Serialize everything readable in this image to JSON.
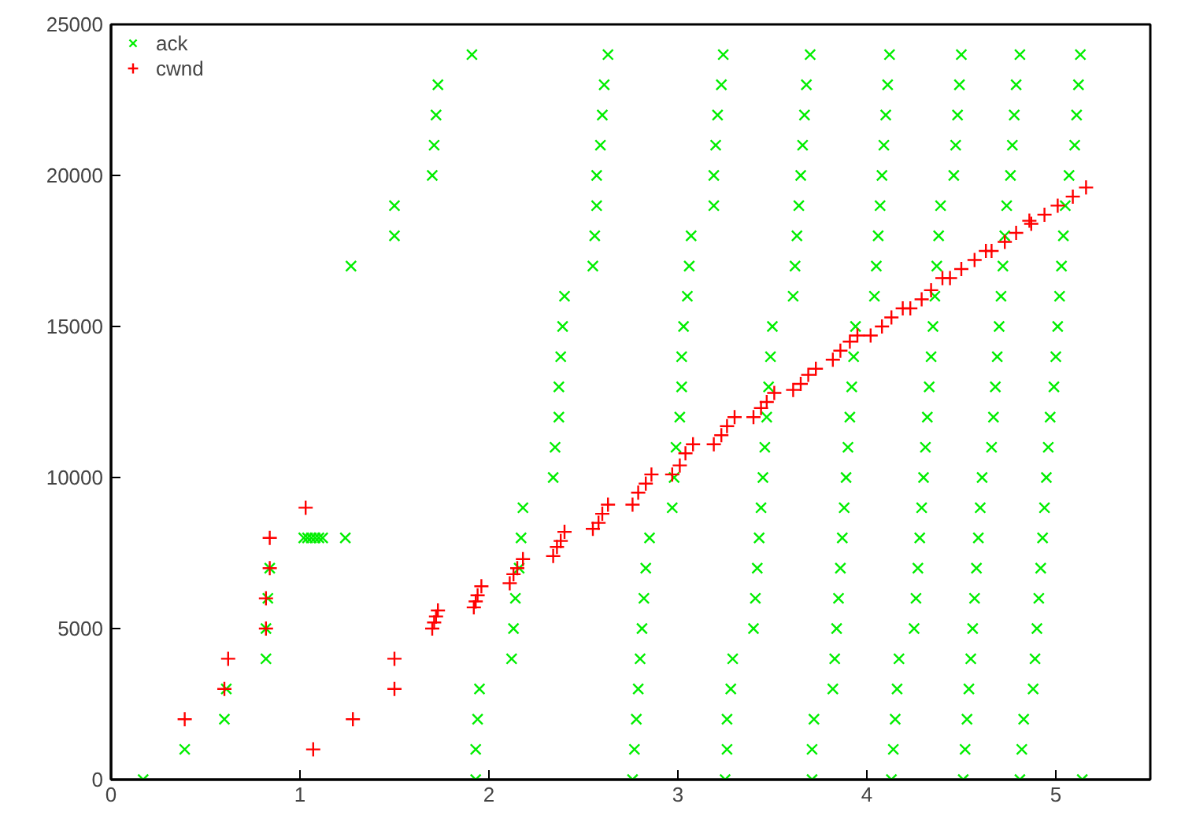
{
  "chart_data": {
    "type": "scatter",
    "xlim": [
      0,
      5.5
    ],
    "ylim": [
      0,
      25000
    ],
    "xticks": [
      0,
      1,
      2,
      3,
      4,
      5
    ],
    "yticks": [
      0,
      5000,
      10000,
      15000,
      20000,
      25000
    ],
    "grid": false,
    "legend": "top left",
    "series": [
      {
        "name": "ack",
        "color": "#00ee00",
        "marker": "x",
        "x": [
          0.17,
          0.39,
          0.6,
          0.61,
          0.82,
          0.82,
          0.83,
          0.84,
          1.02,
          1.04,
          1.06,
          1.08,
          1.1,
          1.12,
          1.24,
          1.27,
          1.5,
          1.5,
          1.7,
          1.71,
          1.72,
          1.73,
          1.91,
          1.93,
          1.93,
          1.94,
          1.95,
          2.12,
          2.13,
          2.14,
          2.16,
          2.17,
          2.18,
          2.34,
          2.35,
          2.37,
          2.37,
          2.38,
          2.39,
          2.4,
          2.55,
          2.56,
          2.57,
          2.57,
          2.59,
          2.6,
          2.61,
          2.63,
          2.76,
          2.77,
          2.78,
          2.79,
          2.8,
          2.81,
          2.82,
          2.83,
          2.85,
          2.97,
          2.98,
          2.99,
          3.01,
          3.02,
          3.02,
          3.03,
          3.05,
          3.06,
          3.07,
          3.19,
          3.19,
          3.2,
          3.21,
          3.23,
          3.24,
          3.25,
          3.26,
          3.26,
          3.28,
          3.29,
          3.4,
          3.41,
          3.42,
          3.43,
          3.44,
          3.45,
          3.46,
          3.47,
          3.48,
          3.49,
          3.5,
          3.61,
          3.62,
          3.63,
          3.64,
          3.65,
          3.66,
          3.67,
          3.68,
          3.7,
          3.71,
          3.71,
          3.72,
          3.82,
          3.83,
          3.84,
          3.85,
          3.86,
          3.87,
          3.88,
          3.89,
          3.9,
          3.91,
          3.92,
          3.93,
          3.94,
          4.04,
          4.05,
          4.06,
          4.07,
          4.08,
          4.09,
          4.1,
          4.11,
          4.12,
          4.13,
          4.14,
          4.15,
          4.16,
          4.17,
          4.25,
          4.26,
          4.27,
          4.28,
          4.29,
          4.3,
          4.31,
          4.32,
          4.33,
          4.34,
          4.35,
          4.36,
          4.37,
          4.38,
          4.39,
          4.46,
          4.47,
          4.48,
          4.49,
          4.5,
          4.51,
          4.52,
          4.53,
          4.54,
          4.55,
          4.56,
          4.57,
          4.58,
          4.59,
          4.6,
          4.61,
          4.66,
          4.67,
          4.68,
          4.69,
          4.7,
          4.71,
          4.72,
          4.73,
          4.74,
          4.76,
          4.77,
          4.78,
          4.79,
          4.81,
          4.81,
          4.82,
          4.83,
          4.88,
          4.89,
          4.9,
          4.91,
          4.92,
          4.93,
          4.94,
          4.95,
          4.96,
          4.97,
          4.99,
          5.0,
          5.01,
          5.02,
          5.03,
          5.04,
          5.05,
          5.07,
          5.1,
          5.11,
          5.12,
          5.13,
          5.14
        ],
        "values": [
          0,
          1000,
          2000,
          3000,
          4000,
          5000,
          6000,
          7000,
          8000,
          8000,
          8000,
          8000,
          8000,
          8000,
          8000,
          17000,
          18000,
          19000,
          20000,
          21000,
          22000,
          23000,
          24000,
          0,
          1000,
          2000,
          3000,
          4000,
          5000,
          6000,
          7000,
          8000,
          9000,
          10000,
          11000,
          12000,
          13000,
          14000,
          15000,
          16000,
          17000,
          18000,
          19000,
          20000,
          21000,
          22000,
          23000,
          24000,
          0,
          1000,
          2000,
          3000,
          4000,
          5000,
          6000,
          7000,
          8000,
          9000,
          10000,
          11000,
          12000,
          13000,
          14000,
          15000,
          16000,
          17000,
          18000,
          19000,
          20000,
          21000,
          22000,
          23000,
          24000,
          0,
          1000,
          2000,
          3000,
          4000,
          5000,
          6000,
          7000,
          8000,
          9000,
          10000,
          11000,
          12000,
          13000,
          14000,
          15000,
          16000,
          17000,
          18000,
          19000,
          20000,
          21000,
          22000,
          23000,
          24000,
          0,
          1000,
          2000,
          3000,
          4000,
          5000,
          6000,
          7000,
          8000,
          9000,
          10000,
          11000,
          12000,
          13000,
          14000,
          15000,
          16000,
          17000,
          18000,
          19000,
          20000,
          21000,
          22000,
          23000,
          24000,
          0,
          1000,
          2000,
          3000,
          4000,
          5000,
          6000,
          7000,
          8000,
          9000,
          10000,
          11000,
          12000,
          13000,
          14000,
          15000,
          16000,
          17000,
          18000,
          19000,
          20000,
          21000,
          22000,
          23000,
          24000,
          0,
          1000,
          2000,
          3000,
          4000,
          5000,
          6000,
          7000,
          8000,
          9000,
          10000,
          11000,
          12000,
          13000,
          14000,
          15000,
          16000,
          17000,
          18000,
          19000,
          20000,
          21000,
          22000,
          23000,
          24000,
          0,
          1000,
          2000,
          3000,
          4000,
          5000,
          6000,
          7000,
          8000,
          9000,
          10000,
          11000,
          12000,
          13000,
          14000,
          15000,
          16000,
          17000,
          18000,
          19000,
          20000,
          21000,
          22000,
          23000,
          24000,
          0
        ]
      },
      {
        "name": "cwnd",
        "color": "#ff0000",
        "marker": "cross",
        "x": [
          0.39,
          0.6,
          0.62,
          0.82,
          0.82,
          0.84,
          0.84,
          1.03,
          1.07,
          1.28,
          1.5,
          1.5,
          1.7,
          1.71,
          1.72,
          1.73,
          1.92,
          1.93,
          1.94,
          1.96,
          2.11,
          2.13,
          2.15,
          2.18,
          2.34,
          2.36,
          2.38,
          2.4,
          2.55,
          2.58,
          2.6,
          2.63,
          2.76,
          2.79,
          2.83,
          2.86,
          2.97,
          3.01,
          3.04,
          3.08,
          3.19,
          3.23,
          3.26,
          3.3,
          3.4,
          3.44,
          3.47,
          3.51,
          3.61,
          3.65,
          3.69,
          3.73,
          3.82,
          3.86,
          3.91,
          3.95,
          4.02,
          4.08,
          4.13,
          4.19,
          4.23,
          4.29,
          4.34,
          4.4,
          4.44,
          4.5,
          4.57,
          4.63,
          4.66,
          4.73,
          4.79,
          4.86,
          4.87,
          4.94,
          5.01,
          5.09,
          5.16
        ],
        "values": [
          2000,
          3000,
          4000,
          5000,
          6000,
          7000,
          8000,
          9000,
          1000,
          2000,
          3000,
          4000,
          5000,
          5200,
          5400,
          5600,
          5700,
          5900,
          6100,
          6400,
          6500,
          6800,
          7000,
          7300,
          7400,
          7700,
          7900,
          8200,
          8300,
          8500,
          8800,
          9100,
          9100,
          9500,
          9800,
          10100,
          10100,
          10400,
          10800,
          11100,
          11100,
          11400,
          11700,
          12000,
          12000,
          12300,
          12500,
          12800,
          12900,
          13100,
          13400,
          13600,
          13900,
          14200,
          14500,
          14700,
          14700,
          15000,
          15300,
          15600,
          15600,
          15900,
          16200,
          16600,
          16600,
          16900,
          17200,
          17500,
          17500,
          17800,
          18100,
          18500,
          18400,
          18700,
          19000,
          19300,
          19600
        ]
      }
    ]
  }
}
